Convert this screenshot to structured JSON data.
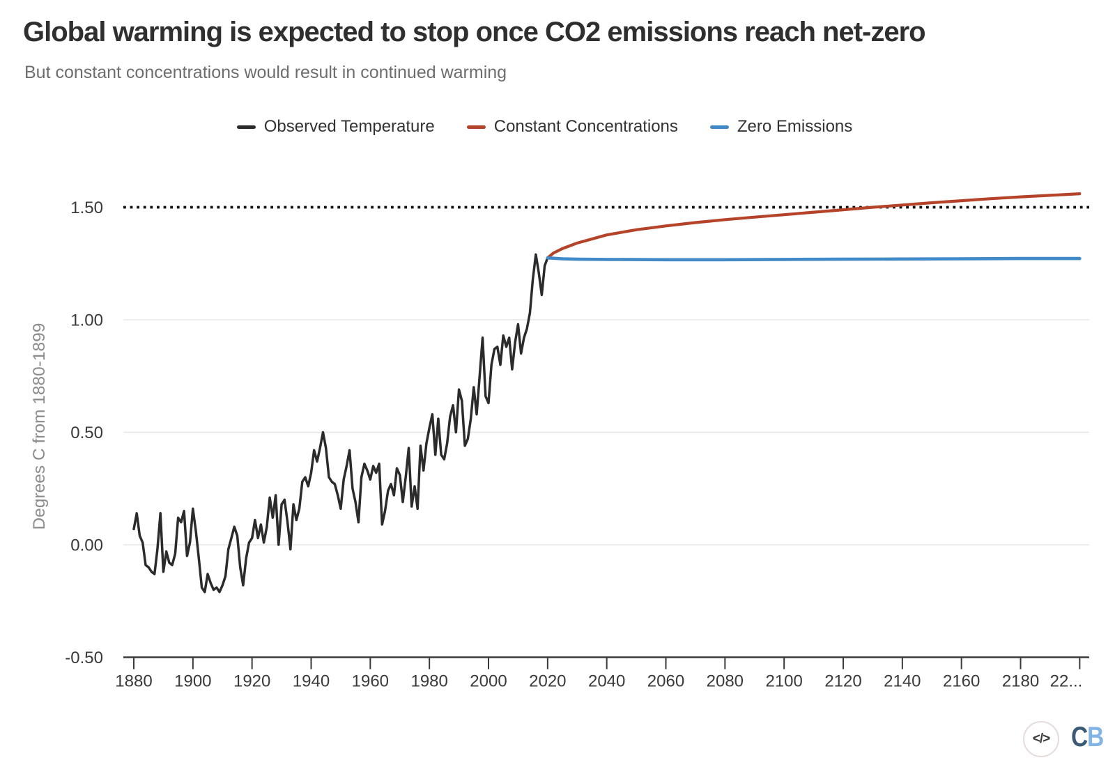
{
  "chart_data": {
    "type": "line",
    "title": "Global warming is expected to stop once CO2 emissions reach net-zero",
    "subtitle": "But constant concentrations would result in continued warming",
    "ylabel": "Degrees C from 1880-1899",
    "xlabel": "",
    "xlim": [
      1880,
      2200
    ],
    "ylim": [
      -0.5,
      1.65
    ],
    "grid": true,
    "legend_position": "top",
    "grid_y_values": [
      0.0,
      0.5,
      1.0
    ],
    "threshold_line": {
      "value": 1.5,
      "style": "dotted",
      "color": "#111111"
    },
    "yticks": [
      {
        "v": 1.5,
        "label": "1.50"
      },
      {
        "v": 1.0,
        "label": "1.00"
      },
      {
        "v": 0.5,
        "label": "0.50"
      },
      {
        "v": 0.0,
        "label": "0.00"
      },
      {
        "v": -0.5,
        "label": "-0.50"
      }
    ],
    "xticks": [
      {
        "v": 1880,
        "label": "1880"
      },
      {
        "v": 1900,
        "label": "1900"
      },
      {
        "v": 1920,
        "label": "1920"
      },
      {
        "v": 1940,
        "label": "1940"
      },
      {
        "v": 1960,
        "label": "1960"
      },
      {
        "v": 1980,
        "label": "1980"
      },
      {
        "v": 2000,
        "label": "2000"
      },
      {
        "v": 2020,
        "label": "2020"
      },
      {
        "v": 2040,
        "label": "2040"
      },
      {
        "v": 2060,
        "label": "2060"
      },
      {
        "v": 2080,
        "label": "2080"
      },
      {
        "v": 2100,
        "label": "2100"
      },
      {
        "v": 2120,
        "label": "2120"
      },
      {
        "v": 2140,
        "label": "2140"
      },
      {
        "v": 2160,
        "label": "2160"
      },
      {
        "v": 2180,
        "label": "2180"
      },
      {
        "v": 2200,
        "label": "22..."
      }
    ],
    "series": [
      {
        "name": "Observed Temperature",
        "color": "#2b2b2b",
        "width": 3.5,
        "x_start": 1880,
        "x_step": 1,
        "values": [
          0.07,
          0.14,
          0.04,
          0.01,
          -0.09,
          -0.1,
          -0.12,
          -0.13,
          -0.02,
          0.14,
          -0.12,
          -0.03,
          -0.08,
          -0.09,
          -0.04,
          0.12,
          0.1,
          0.15,
          -0.05,
          0.01,
          0.16,
          0.06,
          -0.06,
          -0.19,
          -0.21,
          -0.13,
          -0.17,
          -0.2,
          -0.19,
          -0.21,
          -0.18,
          -0.14,
          -0.02,
          0.03,
          0.08,
          0.04,
          -0.1,
          -0.18,
          -0.06,
          0.01,
          0.03,
          0.11,
          0.03,
          0.09,
          0.01,
          0.08,
          0.21,
          0.12,
          0.22,
          0.0,
          0.18,
          0.2,
          0.1,
          -0.02,
          0.18,
          0.11,
          0.16,
          0.28,
          0.3,
          0.26,
          0.32,
          0.42,
          0.37,
          0.43,
          0.5,
          0.43,
          0.3,
          0.28,
          0.27,
          0.22,
          0.16,
          0.29,
          0.35,
          0.42,
          0.25,
          0.19,
          0.1,
          0.3,
          0.36,
          0.33,
          0.29,
          0.35,
          0.32,
          0.36,
          0.09,
          0.15,
          0.24,
          0.27,
          0.22,
          0.34,
          0.31,
          0.19,
          0.3,
          0.43,
          0.17,
          0.26,
          0.16,
          0.44,
          0.33,
          0.45,
          0.52,
          0.58,
          0.4,
          0.56,
          0.4,
          0.38,
          0.45,
          0.57,
          0.62,
          0.5,
          0.69,
          0.64,
          0.44,
          0.47,
          0.56,
          0.7,
          0.58,
          0.75,
          0.92,
          0.66,
          0.63,
          0.8,
          0.87,
          0.88,
          0.8,
          0.93,
          0.88,
          0.92,
          0.78,
          0.9,
          0.98,
          0.85,
          0.92,
          0.96,
          1.03,
          1.18,
          1.29,
          1.21,
          1.11,
          1.24,
          1.275
        ]
      },
      {
        "name": "Constant Concentrations",
        "color": "#b5432a",
        "width": 4.2,
        "x": [
          2020,
          2022,
          2025,
          2030,
          2040,
          2050,
          2060,
          2070,
          2080,
          2090,
          2100,
          2110,
          2120,
          2130,
          2140,
          2150,
          2160,
          2170,
          2180,
          2190,
          2200
        ],
        "values": [
          1.275,
          1.297,
          1.316,
          1.341,
          1.377,
          1.4,
          1.417,
          1.432,
          1.445,
          1.456,
          1.467,
          1.478,
          1.489,
          1.5,
          1.51,
          1.52,
          1.529,
          1.538,
          1.546,
          1.553,
          1.56
        ]
      },
      {
        "name": "Zero Emissions",
        "color": "#4189c7",
        "width": 4.6,
        "x": [
          2020,
          2025,
          2030,
          2040,
          2060,
          2080,
          2100,
          2120,
          2140,
          2160,
          2180,
          2200
        ],
        "values": [
          1.275,
          1.271,
          1.269,
          1.268,
          1.267,
          1.267,
          1.268,
          1.269,
          1.27,
          1.271,
          1.272,
          1.272
        ]
      }
    ]
  },
  "footer": {
    "embed_icon": "</>",
    "logo": {
      "c": "C",
      "b": "B"
    },
    "logo_colors": {
      "c": "#3c5a75",
      "b": "#83b4e6"
    }
  }
}
